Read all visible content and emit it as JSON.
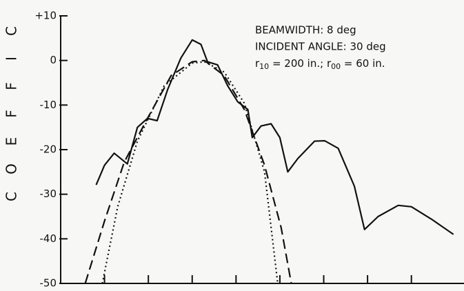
{
  "chart_data": {
    "type": "line",
    "y_label_letters": [
      "C",
      "O",
      "E",
      "F",
      "F",
      "I",
      "C"
    ],
    "annotations": [
      "BEAMWIDTH:  8 deg",
      "INCIDENT ANGLE:  30 deg"
    ],
    "annotation_parts": [
      "r",
      "10",
      " = 200 in.; r",
      "00",
      " = 60 in."
    ],
    "xlim": [
      0,
      9.2
    ],
    "xticks": [
      1,
      2,
      3,
      4,
      5,
      6,
      7,
      8
    ],
    "ylim": [
      -50,
      10
    ],
    "yticks": [
      {
        "value": 10,
        "label": "+10"
      },
      0,
      -10,
      -20,
      -30,
      -40,
      -50
    ],
    "series": [
      {
        "color": "#111",
        "dash": "solid",
        "x": [
          0.81,
          1,
          1.22,
          1.52,
          1.75,
          1.98,
          2.2,
          2.44,
          2.74,
          3,
          3.2,
          3.35,
          3.58,
          3.81,
          4.04,
          4.27,
          4.37,
          4.57,
          4.8,
          5,
          5.18,
          5.41,
          5.79,
          6.02,
          6.33,
          6.7,
          6.93,
          7.24,
          7.7,
          8,
          8.46,
          8.96
        ],
        "values": [
          -27.9,
          -23.5,
          -20.8,
          -23.2,
          -15,
          -13,
          -13.5,
          -6.5,
          0.5,
          4.6,
          3.6,
          -0.3,
          -1,
          -5.7,
          -9.3,
          -11,
          -17.3,
          -14.7,
          -14.2,
          -17.3,
          -25,
          -22,
          -18.1,
          -18,
          -19.7,
          -28.2,
          -37.9,
          -35,
          -32.5,
          -32.8,
          -35.6,
          -39
        ]
      },
      {
        "color": "#111",
        "dash": "dashed",
        "x": [
          0.56,
          1,
          1.45,
          1.98,
          2.52,
          3,
          3.28,
          3.73,
          4.19,
          4.65,
          5.03,
          5.26
        ],
        "values": [
          -50,
          -36,
          -22.8,
          -13,
          -3.4,
          -0.3,
          0,
          -3.4,
          -11,
          -23.5,
          -37.5,
          -50
        ]
      },
      {
        "color": "#111",
        "dash": "dotted",
        "x": [
          0.95,
          1.3,
          1.75,
          2.36,
          3,
          3.28,
          3.73,
          4.19,
          4.65,
          4.95
        ],
        "values": [
          -50,
          -32.8,
          -18.1,
          -5.7,
          -0.6,
          -0.3,
          -2.6,
          -9.6,
          -25,
          -50
        ]
      }
    ]
  }
}
